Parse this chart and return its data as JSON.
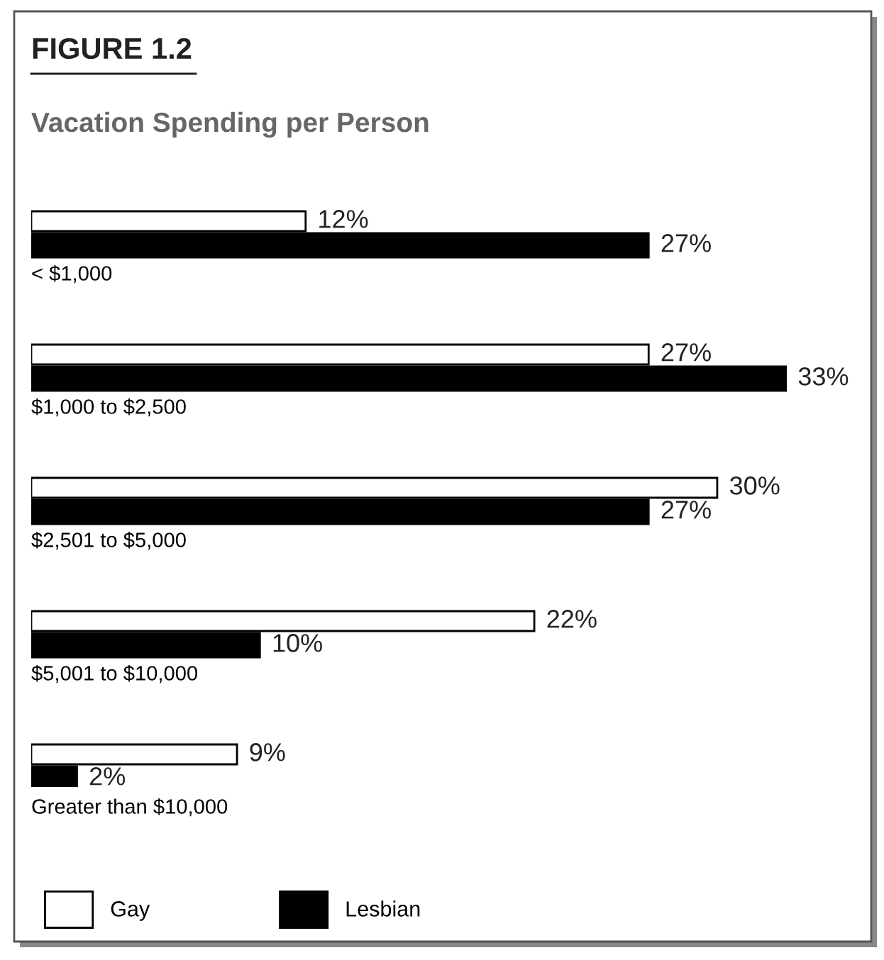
{
  "chart_data": {
    "type": "bar",
    "orientation": "horizontal",
    "title": "FIGURE 1.2",
    "subtitle": "Vacation Spending per Person",
    "categories": [
      "< $1,000",
      "$1,000 to $2,500",
      "$2,501 to $5,000",
      "$5,001 to $10,000",
      "Greater than $10,000"
    ],
    "series": [
      {
        "name": "Gay",
        "color": "#ffffff",
        "values": [
          12,
          27,
          30,
          22,
          9
        ],
        "value_labels": [
          "12%",
          "27%",
          "30%",
          "22%",
          "9%"
        ]
      },
      {
        "name": "Lesbian",
        "color": "#000000",
        "values": [
          27,
          33,
          27,
          10,
          2
        ],
        "value_labels": [
          "27%",
          "33%",
          "27%",
          "10%",
          "2%"
        ]
      }
    ],
    "legend": "bottom left"
  }
}
